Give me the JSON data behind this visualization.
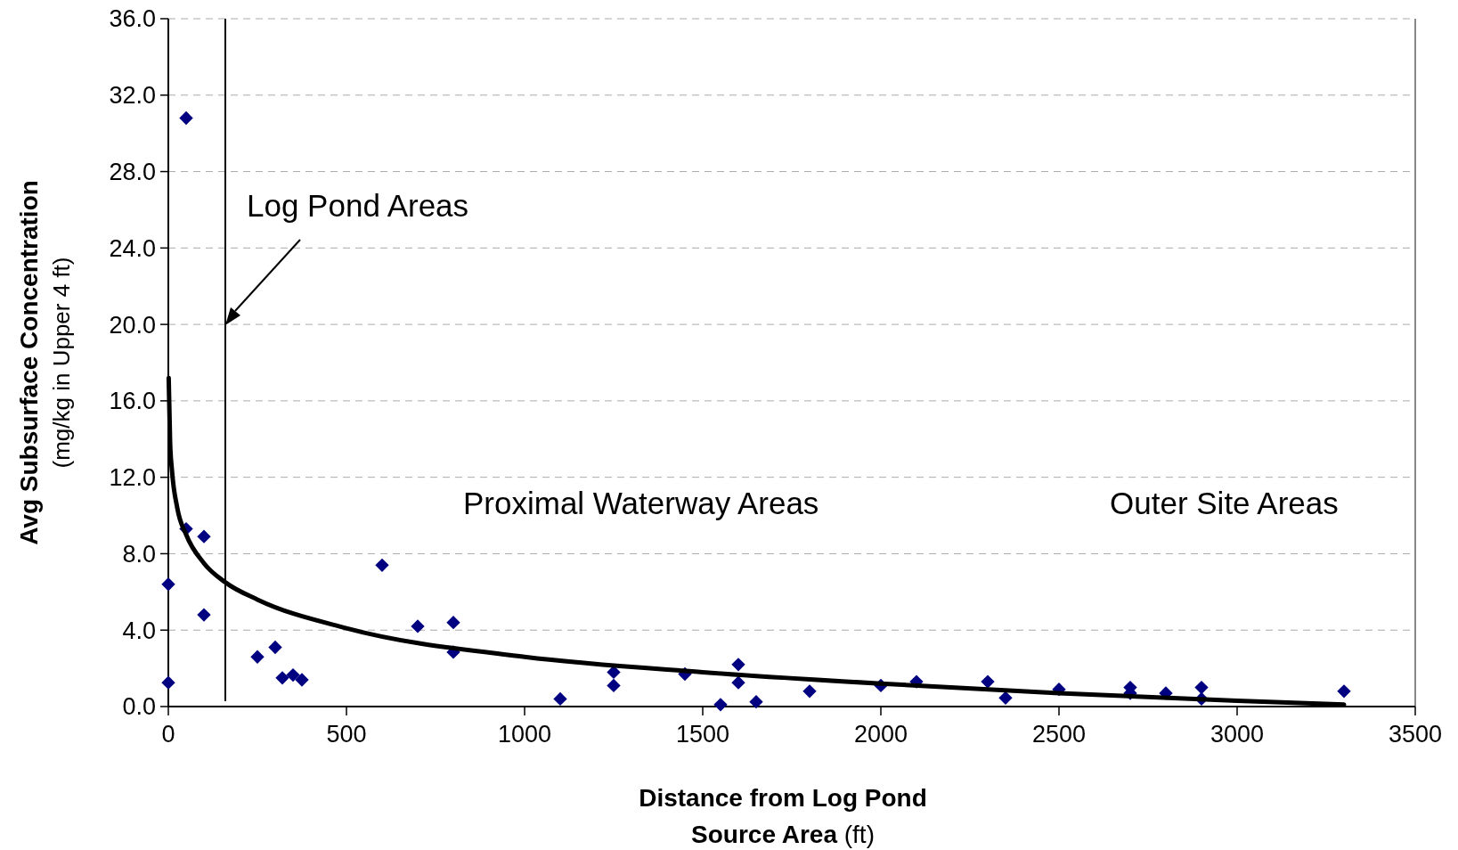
{
  "chart_data": {
    "type": "scatter",
    "xlabel": "Distance from Log Pond Source  Area (ft)",
    "ylabel": "Avg Subsurface Concentration (mg/kg in Upper 4 ft)",
    "xlim": [
      0,
      3500
    ],
    "xticks": [
      0,
      500,
      1000,
      1500,
      2000,
      2500,
      3000,
      3500
    ],
    "ylim": [
      0,
      36
    ],
    "yticks": [
      {
        "value": 0,
        "label": "0.0"
      },
      {
        "value": 4,
        "label": "4.0"
      },
      {
        "value": 8,
        "label": "8.0"
      },
      {
        "value": 12,
        "label": "12.0"
      },
      {
        "value": 16,
        "label": "16.0"
      },
      {
        "value": 20,
        "label": "20.0"
      },
      {
        "value": 24,
        "label": "24.0"
      },
      {
        "value": 28,
        "label": "28.0"
      },
      {
        "value": 32,
        "label": "32.0"
      },
      {
        "value": 36,
        "label": "36.0"
      }
    ],
    "grid": "y",
    "marker": "diamond",
    "series": [
      {
        "color": "#000080",
        "x": [
          0,
          0,
          50,
          50,
          100,
          100,
          250,
          300,
          320,
          350,
          375,
          600,
          700,
          800,
          800,
          1100,
          1250,
          1250,
          1450,
          1550,
          1600,
          1600,
          1650,
          1800,
          2000,
          2100,
          2300,
          2350,
          2500,
          2700,
          2700,
          2800,
          2900,
          2900,
          3300
        ],
        "values": [
          6.4,
          1.25,
          30.8,
          9.3,
          8.9,
          4.8,
          2.6,
          3.1,
          1.5,
          1.65,
          1.4,
          7.4,
          4.2,
          4.4,
          2.85,
          0.4,
          1.8,
          1.1,
          1.7,
          0.1,
          2.2,
          1.25,
          0.25,
          0.8,
          1.1,
          1.3,
          1.3,
          0.45,
          0.9,
          1.0,
          0.7,
          0.7,
          1.0,
          0.4,
          0.8
        ]
      },
      {
        "type": "line",
        "color": "#000000",
        "marker": "none",
        "x": [
          1,
          5,
          10,
          25,
          50,
          100,
          160,
          250,
          500,
          1000,
          1500,
          2000,
          2500,
          3000,
          3300
        ],
        "values": [
          17.2,
          13.8,
          12.4,
          10.4,
          9.0,
          7.5,
          6.5,
          5.6,
          4.1,
          2.6,
          1.8,
          1.2,
          0.7,
          0.3,
          0.1
        ]
      }
    ],
    "ref_lines": [
      {
        "axis": "x",
        "value": 160,
        "color": "#000000"
      }
    ],
    "annotations": [
      "Log Pond Areas",
      "Proximal Waterway Areas",
      "Outer Site Areas"
    ]
  }
}
